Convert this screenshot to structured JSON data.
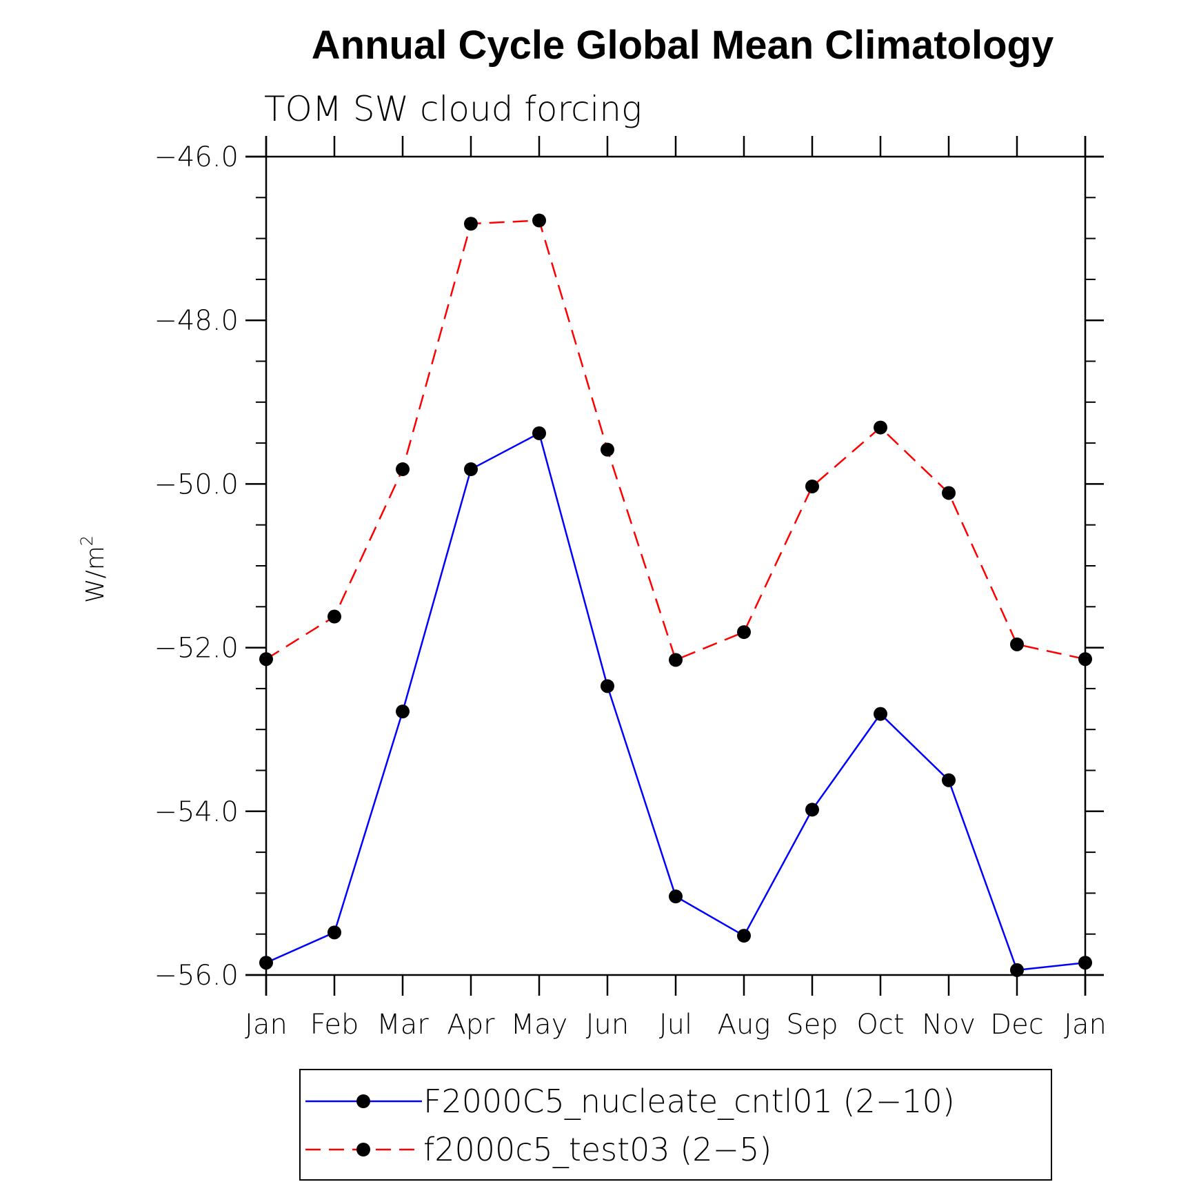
{
  "chart_data": {
    "type": "line",
    "title": "Annual Cycle Global Mean Climatology",
    "subtitle": "TOM SW cloud forcing",
    "ylabel": "W/m",
    "ylabel_superscript": "2",
    "xlabel": "",
    "categories": [
      "Jan",
      "Feb",
      "Mar",
      "Apr",
      "May",
      "Jun",
      "Jul",
      "Aug",
      "Sep",
      "Oct",
      "Nov",
      "Dec",
      "Jan"
    ],
    "ylim": [
      -56.0,
      -46.0
    ],
    "yticks": [
      "−46.0",
      "−48.0",
      "−50.0",
      "−52.0",
      "−54.0",
      "−56.0"
    ],
    "ytick_values": [
      -46.0,
      -48.0,
      -50.0,
      -52.0,
      -54.0,
      -56.0
    ],
    "grid": false,
    "legend_position": "bottom",
    "series": [
      {
        "name": "F2000C5_nucleate_cntl01 (2−10)",
        "color": "#0000ff",
        "dash": "solid",
        "marker": "filled-circle",
        "values": [
          -55.85,
          -55.48,
          -52.78,
          -49.82,
          -49.38,
          -52.47,
          -55.04,
          -55.52,
          -53.98,
          -52.81,
          -53.62,
          -55.94,
          -55.85
        ]
      },
      {
        "name": "f2000c5_test03 (2−5)",
        "color": "#ff0000",
        "dash": "dashed",
        "marker": "filled-circle",
        "values": [
          -52.14,
          -51.62,
          -49.82,
          -46.82,
          -46.78,
          -49.58,
          -52.15,
          -51.81,
          -50.03,
          -49.31,
          -50.11,
          -51.96,
          -52.14
        ]
      }
    ]
  }
}
